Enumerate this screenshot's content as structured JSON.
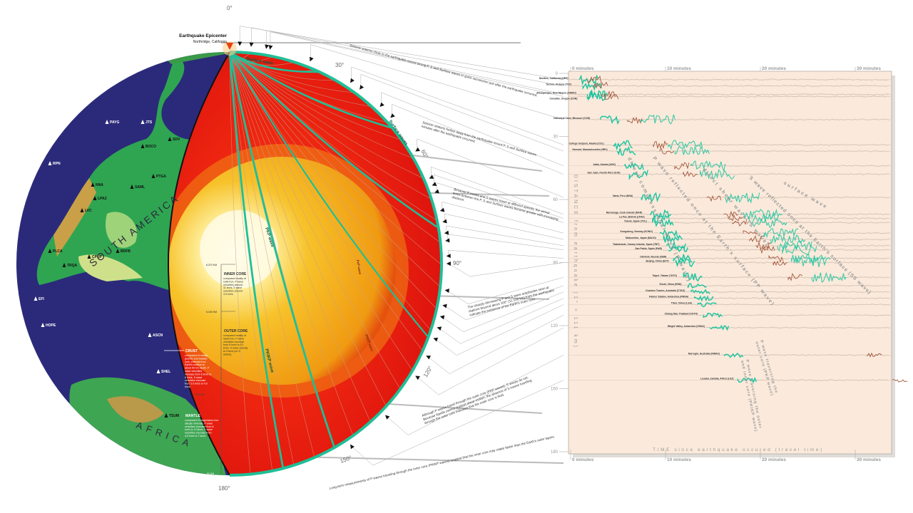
{
  "epicenter": {
    "title": "Earthquake Epicenter",
    "place": "Northridge, California"
  },
  "angle_labels": [
    "0°",
    "30°",
    "60°",
    "90°",
    "120°",
    "150°",
    "180°"
  ],
  "globe_stations": [
    "PAYG",
    "JTS",
    "SDV",
    "BOCO",
    "RPN",
    "PTGA",
    "NNA",
    "SAML",
    "LPAZ",
    "LVC",
    "PLCA",
    "CPUP",
    "BDFB",
    "TRQA",
    "EFI",
    "HOPE",
    "ASCN",
    "SHEL",
    "TSUM"
  ],
  "continents": [
    "SOUTH AMERICA",
    "AFRICA"
  ],
  "layers": {
    "inner_core": {
      "title": "INNER CORE",
      "text": "composed mostly of solid iron, P wave velocities around 11 km/s, S wave velocities around 3.5 km/s.",
      "depth": "6,370 KM"
    },
    "outer_core": {
      "title": "OUTER CORE",
      "text": "composed mostly of liquid iron, P wave velocities increase from 8 km/s to 10 km/s, S wave velocity is 0 km/s (no S waves).",
      "depth": "5,150 KM"
    },
    "crust": {
      "title": "CRUST",
      "text": "composed of mostly granitic and basaltic rock, extends from Earth's surface to about 50 km depth. P wave velocities increase from 6 km/s to 8 km/s, S wave velocities increase from 3.5 km/s to 4.5 km/s."
    },
    "mantle": {
      "title": "MANTLE",
      "text": "composed of magnesium-iron silicate minerals, P wave velocities increase from 8 km/s to 13 km/s, S wave velocities increase from 4.5 km/s to 7 km/s.",
      "depth_top": "2,890 KM",
      "depth_bottom": "50 KM"
    }
  },
  "globe_wave_labels": [
    "Surface wave",
    "Surface waves",
    "PKP wave",
    "PKIKP wave",
    "PcP wave",
    "PKKP wave"
  ],
  "annotations": [
    "Seismic stations close to the earthquake record strong P, S and Surface waves in quick succession just after the earthquake occurred.",
    "Seismic stations further away from the earthquake record P, S and Surface waves minutes after the earthquake occurred.",
    "Because P waves and S waves travel at different speeds, the arrival times between the P, S and Surface waves become greater with increasing distance.",
    "The sharply decreasing P and S wave amplitudes seen at stations beyond about 100° (11,100 km) from the earthquake indicate the existence of the Earth's outer core.",
    "Although P waves travel through the outer core (PKP waves), S waves do not. Because liquids cannot support shear motion, the absence of S waves traveling through the outer core indicates that the outer core is fluid.",
    "Long-term measurements of P waves traveling through the inner core (PKIKP waves) suggest that the inner core may rotate faster than the Earth's outer layers."
  ],
  "seismogram": {
    "time_ticks": [
      "0 minutes",
      "10 minutes",
      "20 minutes",
      "30 minutes"
    ],
    "distance_ticks": [
      "0",
      "30",
      "60",
      "90",
      "120",
      "150",
      "180"
    ],
    "x_title": "TIME since earthquake occured (travel time)",
    "y_title": "DISTANCE from earthquake (1° = 111 km)",
    "phase_labels": [
      "direct compressional wave (P wave)",
      "P wave reflected once at the Earth's surface (PP wave)",
      "direct shear wave (S wave)",
      "S wave reflected once at the Earth's surface (SS wave)",
      "surface wave",
      "P wave traversing the outer core (PKP wave)",
      "P wave traversing the outer and inner core (PKIKP wave)"
    ],
    "colors": {
      "background": "#fbeadb",
      "p_wave": "#19c4a0",
      "s_wave": "#a5583e",
      "trace": "#b9a9a0"
    },
    "stations": [
      {
        "name": "Needles, California (NEE)",
        "distance_deg": 3
      },
      {
        "name": "Tucson, Arizona (TUC)",
        "distance_deg": 6
      },
      {
        "name": "Albuquerque, New Mexico (ANMO)",
        "distance_deg": 10
      },
      {
        "name": "Corvallis, Oregon (COR)",
        "distance_deg": 11
      },
      {
        "name": "Cathedral Cave, Missouri (CCM)",
        "distance_deg": 22
      },
      {
        "name": "College Outpost, Alaska (COL)",
        "distance_deg": 34
      },
      {
        "name": "Harvard, Massachusetts (HRV)",
        "distance_deg": 37
      },
      {
        "name": "Adak, Alaska (ADK)",
        "distance_deg": 44
      },
      {
        "name": "San Juan, Puerto Rico (SJG)",
        "distance_deg": 48
      },
      {
        "name": "Nana, Peru (NNA)",
        "distance_deg": 59
      },
      {
        "name": "Rarotonga, Cook Islands (RAR)",
        "distance_deg": 67
      },
      {
        "name": "La Paz, Bolivia (LPAZ)",
        "distance_deg": 69
      },
      {
        "name": "Toledo, Spain (TOL)",
        "distance_deg": 71
      },
      {
        "name": "Kongsberg, Norway (KONO)",
        "distance_deg": 76
      },
      {
        "name": "Matsushiro, Japan (MAJO)",
        "distance_deg": 79
      },
      {
        "name": "Tabarteaste, Canary Islands, Spain (TBT)",
        "distance_deg": 82
      },
      {
        "name": "San Pablo, Spain (PAB)",
        "distance_deg": 84
      },
      {
        "name": "Obninsk, Russia (OBN)",
        "distance_deg": 88
      },
      {
        "name": "Beijing, China (BJT)",
        "distance_deg": 90
      },
      {
        "name": "Taipei, Taiwan (TATO)",
        "distance_deg": 97
      },
      {
        "name": "Enshi, China (ENH)",
        "distance_deg": 101
      },
      {
        "name": "Charters Towers, Australia (CTAO)",
        "distance_deg": 104
      },
      {
        "name": "Palmer Station, Antarctica (PMSA)",
        "distance_deg": 107
      },
      {
        "name": "Tibet, China (LSA)",
        "distance_deg": 110
      },
      {
        "name": "Chiang Mai, Thailand (CHTO)",
        "distance_deg": 115
      },
      {
        "name": "Wright Valley, Antarctica (VNDA)",
        "distance_deg": 121
      },
      {
        "name": "Narrogin, Australia (NWAO)",
        "distance_deg": 134
      },
      {
        "name": "Lusaka, Zambia, Africa (LSZ)",
        "distance_deg": 146
      }
    ]
  }
}
